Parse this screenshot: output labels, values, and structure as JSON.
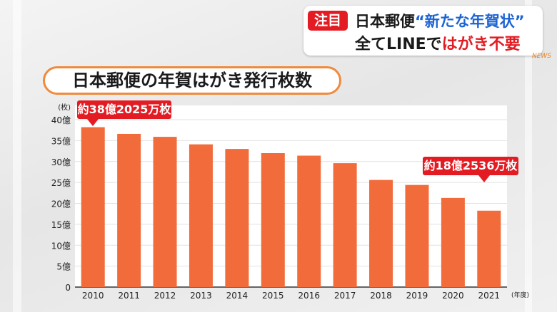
{
  "headline": {
    "tag": "注目",
    "line1_main": "日本郵便",
    "line1_accent": "“新たな年賀状”",
    "line2_main": "全てLINEで",
    "line2_accent": "はがき不要",
    "brand": "NEWS",
    "colors": {
      "tag": "#e31c23",
      "accent_blue": "#1c64d4",
      "accent_red": "#e31c23"
    }
  },
  "callouts": {
    "first": "約38億2025万枚",
    "last": "約18億2536万枚"
  },
  "chart_data": {
    "type": "bar",
    "title": "日本郵便の年賀はがき発行枚数",
    "y_unit_label": "(枚)",
    "x_unit_label": "(年度)",
    "categories": [
      "2010",
      "2011",
      "2012",
      "2013",
      "2014",
      "2015",
      "2016",
      "2017",
      "2018",
      "2019",
      "2020",
      "2021"
    ],
    "values": [
      38.2025,
      36.6,
      35.9,
      34.1,
      33.0,
      32.0,
      31.4,
      29.6,
      25.6,
      24.4,
      21.3,
      18.2536
    ],
    "value_unit": "億枚",
    "ylim": [
      0,
      40
    ],
    "yticks": [
      0,
      5,
      10,
      15,
      20,
      25,
      30,
      35,
      40
    ],
    "ytick_labels": [
      "0",
      "5億",
      "10億",
      "15億",
      "20億",
      "25億",
      "30億",
      "35億",
      "40億"
    ],
    "bar_color": "#f26b3a",
    "grid": true
  }
}
